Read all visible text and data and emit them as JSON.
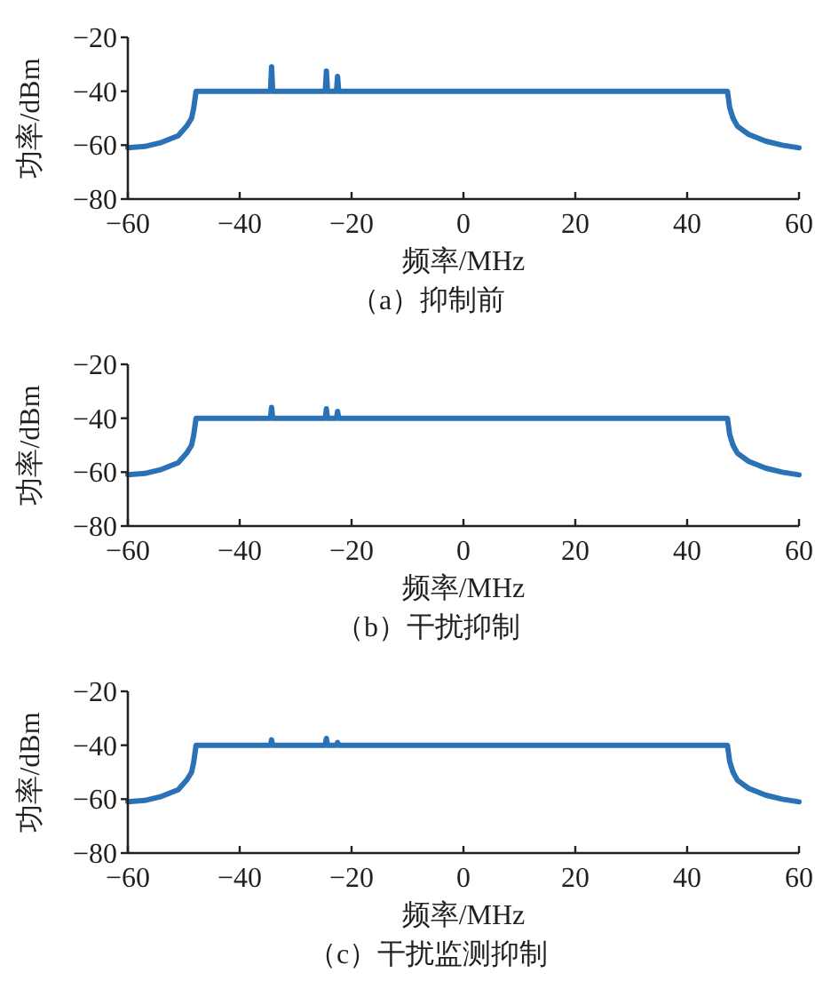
{
  "chart_data": [
    {
      "type": "line",
      "title": "（a）抑制前",
      "xlabel": "频率/MHz",
      "ylabel": "功率/dBm",
      "xlim": [
        -60,
        60
      ],
      "ylim": [
        -80,
        -20
      ],
      "xticks": [
        -60,
        -40,
        -20,
        0,
        20,
        40,
        60
      ],
      "yticks": [
        -80,
        -60,
        -40,
        -20
      ],
      "series": [
        {
          "color": "#2a72b5",
          "x": [
            -60,
            -57,
            -54,
            -51,
            -49.5,
            -48.6,
            -48.2,
            -47.8,
            -34.5,
            -34.3,
            -34.1,
            -24.7,
            -24.5,
            -24.3,
            -22.7,
            -22.5,
            -22.3,
            47.2,
            47.6,
            48.2,
            49,
            51,
            54,
            57,
            60
          ],
          "values": [
            -61,
            -60.5,
            -59,
            -56.5,
            -53,
            -50,
            -46,
            -40,
            -40,
            -31,
            -40,
            -40,
            -32.5,
            -40,
            -40,
            -34.5,
            -40,
            -40,
            -46,
            -50,
            -53,
            -56,
            -58.5,
            -60,
            -61
          ]
        }
      ]
    },
    {
      "type": "line",
      "title": "（b）干扰抑制",
      "xlabel": "频率/MHz",
      "ylabel": "功率/dBm",
      "xlim": [
        -60,
        60
      ],
      "ylim": [
        -80,
        -20
      ],
      "xticks": [
        -60,
        -40,
        -20,
        0,
        20,
        40,
        60
      ],
      "yticks": [
        -80,
        -60,
        -40,
        -20
      ],
      "series": [
        {
          "color": "#2a72b5",
          "x": [
            -60,
            -57,
            -54,
            -51,
            -49.5,
            -48.6,
            -48.2,
            -47.8,
            -34.5,
            -34.3,
            -34.1,
            -24.7,
            -24.5,
            -24.3,
            -22.7,
            -22.5,
            -22.3,
            47.2,
            47.6,
            48.2,
            49,
            51,
            54,
            57,
            60
          ],
          "values": [
            -61,
            -60.5,
            -59,
            -56.5,
            -53,
            -50,
            -46,
            -40,
            -40,
            -36,
            -40,
            -40,
            -36.5,
            -40,
            -40,
            -37.5,
            -40,
            -40,
            -46,
            -50,
            -53,
            -56,
            -58.5,
            -60,
            -61
          ]
        }
      ]
    },
    {
      "type": "line",
      "title": "（c）干扰监测抑制",
      "xlabel": "频率/MHz",
      "ylabel": "功率/dBm",
      "xlim": [
        -60,
        60
      ],
      "ylim": [
        -80,
        -20
      ],
      "xticks": [
        -60,
        -40,
        -20,
        0,
        20,
        40,
        60
      ],
      "yticks": [
        -80,
        -60,
        -40,
        -20
      ],
      "series": [
        {
          "color": "#2a72b5",
          "x": [
            -60,
            -57,
            -54,
            -51,
            -49.5,
            -48.6,
            -48.2,
            -47.8,
            -34.5,
            -34.3,
            -34.1,
            -24.7,
            -24.5,
            -24.3,
            -22.7,
            -22.5,
            -22.3,
            47.2,
            47.6,
            48.2,
            49,
            51,
            54,
            57,
            60
          ],
          "values": [
            -61,
            -60.5,
            -59,
            -56.5,
            -53,
            -50,
            -46,
            -40,
            -40,
            -38,
            -40,
            -40,
            -37.5,
            -40,
            -40,
            -39,
            -40,
            -40,
            -46,
            -50,
            -53,
            -56,
            -58.5,
            -60,
            -61
          ]
        }
      ]
    }
  ]
}
